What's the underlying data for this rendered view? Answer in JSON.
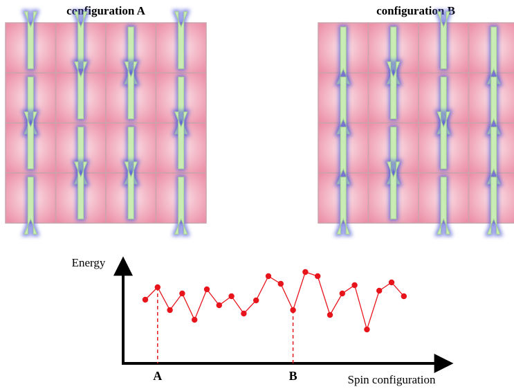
{
  "configurations": [
    {
      "title": "configuration A"
    },
    {
      "title": "configuration B"
    }
  ],
  "energy_plot": {
    "y_label": "Energy",
    "x_label": "Spin configuration",
    "values": [
      9.2,
      11.0,
      7.7,
      10.1,
      6.3,
      10.7,
      8.4,
      9.7,
      7.2,
      9.1,
      12.6,
      11.5,
      7.7,
      13.2,
      12.6,
      7.0,
      10.1,
      11.3,
      4.9,
      10.5,
      11.7,
      9.7
    ],
    "color": "#e8141c",
    "markers": [
      {
        "label": "A",
        "index": 1
      },
      {
        "label": "B",
        "index": 12
      }
    ]
  }
}
